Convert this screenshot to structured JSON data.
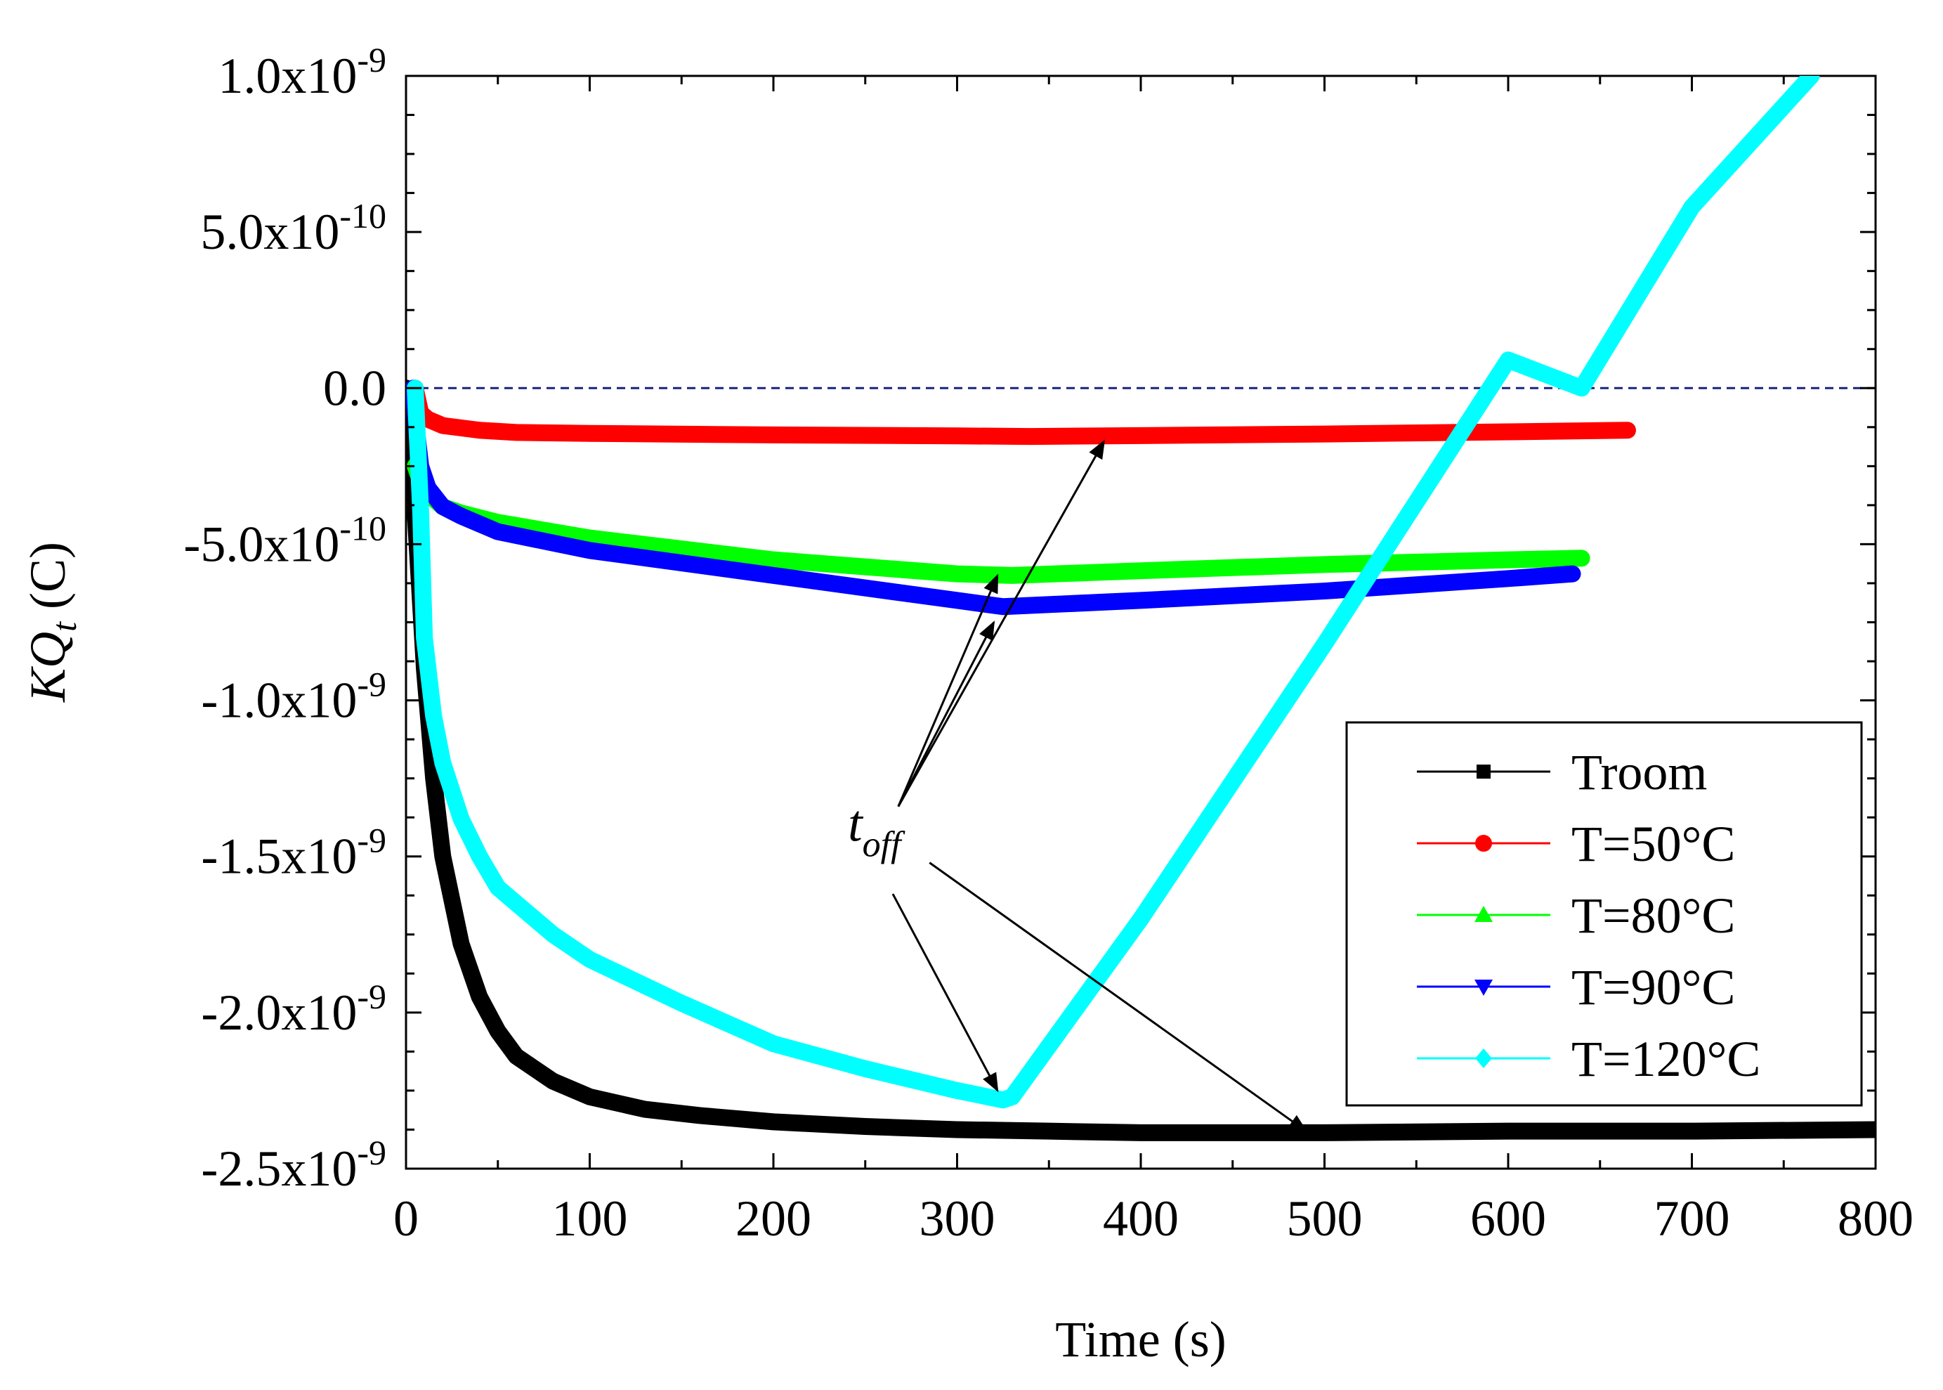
{
  "chart_data": {
    "type": "line",
    "title": "",
    "xlabel": "Time (s)",
    "ylabel": {
      "base": "KQ",
      "sub": "t",
      "unit": " (C)"
    },
    "xlim": [
      0,
      800
    ],
    "ylim": [
      -2.5e-09,
      1e-09
    ],
    "x_ticks": [
      0,
      100,
      200,
      300,
      400,
      500,
      600,
      700,
      800
    ],
    "x_tick_labels": [
      "0",
      "100",
      "200",
      "300",
      "400",
      "500",
      "600",
      "700",
      "800"
    ],
    "y_ticks": [
      1e-09,
      5e-10,
      0,
      -5e-10,
      -1e-09,
      -1.5e-09,
      -2e-09,
      -2.5e-09
    ],
    "y_tick_labels": [
      {
        "mant": "1.0x10",
        "exp": "-9"
      },
      {
        "mant": "5.0x10",
        "exp": "-10"
      },
      {
        "mant": "0.0",
        "exp": ""
      },
      {
        "mant": "-5.0x10",
        "exp": "-10"
      },
      {
        "mant": "-1.0x10",
        "exp": "-9"
      },
      {
        "mant": "-1.5x10",
        "exp": "-9"
      },
      {
        "mant": "-2.0x10",
        "exp": "-9"
      },
      {
        "mant": "-2.5x10",
        "exp": "-9"
      }
    ],
    "reference_line": {
      "y": 0,
      "style": "dashed",
      "color": "#1a237e"
    },
    "legend": {
      "position": "right"
    },
    "series": [
      {
        "name": "Troom",
        "color": "#000000",
        "marker": "square",
        "x": [
          0,
          5,
          10,
          15,
          20,
          30,
          40,
          50,
          60,
          80,
          100,
          130,
          160,
          200,
          250,
          300,
          350,
          400,
          500,
          600,
          700,
          800
        ],
        "y": [
          0,
          -4e-10,
          -9e-10,
          -1.25e-09,
          -1.5e-09,
          -1.78e-09,
          -1.95e-09,
          -2.06e-09,
          -2.14e-09,
          -2.22e-09,
          -2.27e-09,
          -2.31e-09,
          -2.33e-09,
          -2.35e-09,
          -2.365e-09,
          -2.375e-09,
          -2.38e-09,
          -2.385e-09,
          -2.385e-09,
          -2.38e-09,
          -2.38e-09,
          -2.375e-09
        ]
      },
      {
        "name": "T=50°C",
        "color": "#ff0000",
        "marker": "circle",
        "x": [
          5,
          8,
          12,
          20,
          40,
          60,
          100,
          200,
          300,
          340,
          400,
          500,
          600,
          665
        ],
        "y": [
          0,
          -8e-11,
          -1e-10,
          -1.2e-10,
          -1.35e-10,
          -1.42e-10,
          -1.45e-10,
          -1.5e-10,
          -1.53e-10,
          -1.55e-10,
          -1.52e-10,
          -1.47e-10,
          -1.4e-10,
          -1.35e-10
        ]
      },
      {
        "name": "T=80°C",
        "color": "#00ff00",
        "marker": "triangle-up",
        "x": [
          5,
          8,
          12,
          20,
          30,
          50,
          100,
          200,
          300,
          330,
          400,
          500,
          600,
          640
        ],
        "y": [
          -2.5e-10,
          -3e-10,
          -3.4e-10,
          -3.8e-10,
          -4e-10,
          -4.3e-10,
          -4.8e-10,
          -5.5e-10,
          -5.95e-10,
          -6e-10,
          -5.85e-10,
          -5.65e-10,
          -5.5e-10,
          -5.45e-10
        ]
      },
      {
        "name": "T=90°C",
        "color": "#0000ff",
        "marker": "triangle-down",
        "x": [
          4,
          6,
          8,
          12,
          20,
          30,
          50,
          100,
          200,
          300,
          325,
          400,
          500,
          600,
          635
        ],
        "y": [
          0,
          -1.5e-10,
          -2.5e-10,
          -3.2e-10,
          -3.8e-10,
          -4.1e-10,
          -4.6e-10,
          -5.2e-10,
          -6e-10,
          -6.8e-10,
          -7e-10,
          -6.8e-10,
          -6.5e-10,
          -6.1e-10,
          -5.95e-10
        ]
      },
      {
        "name": "T=120°C",
        "color": "#00ffff",
        "marker": "diamond",
        "x": [
          5,
          8,
          10,
          15,
          20,
          30,
          40,
          50,
          60,
          80,
          100,
          150,
          200,
          250,
          300,
          325,
          330,
          400,
          500,
          600,
          640,
          700,
          765
        ],
        "y": [
          0,
          -4e-10,
          -8e-10,
          -1.05e-09,
          -1.2e-09,
          -1.38e-09,
          -1.5e-09,
          -1.6e-09,
          -1.65e-09,
          -1.75e-09,
          -1.83e-09,
          -1.97e-09,
          -2.1e-09,
          -2.18e-09,
          -2.25e-09,
          -2.28e-09,
          -2.27e-09,
          -1.7e-09,
          -8.2e-10,
          9e-11,
          0,
          5.8e-10,
          1e-09
        ]
      }
    ],
    "annotations": [
      {
        "text_main": "t",
        "text_sub": "off",
        "at": [
          255,
          -1.45e-09
        ],
        "arrows": [
          {
            "from": [
              268,
              -1.34e-09
            ],
            "to": [
              380,
              -1.7e-10
            ]
          },
          {
            "from": [
              268,
              -1.34e-09
            ],
            "to": [
              322,
              -6e-10
            ]
          },
          {
            "from": [
              268,
              -1.34e-09
            ],
            "to": [
              320,
              -7.5e-10
            ]
          },
          {
            "from": [
              265,
              -1.62e-09
            ],
            "to": [
              322,
              -2.25e-09
            ]
          },
          {
            "from": [
              285,
              -1.52e-09
            ],
            "to": [
              490,
              -2.38e-09
            ]
          }
        ]
      }
    ]
  }
}
